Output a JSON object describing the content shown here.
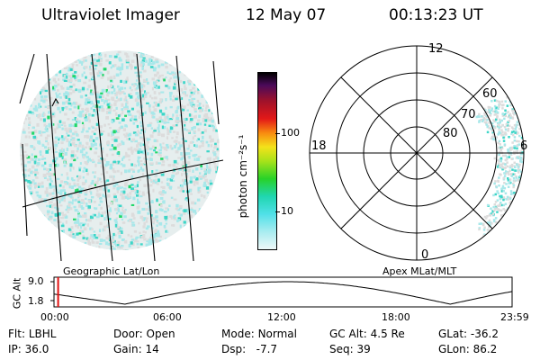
{
  "header": {
    "title": "Ultraviolet Imager",
    "date": "12 May 07",
    "time": "00:13:23 UT"
  },
  "left_panel": {
    "caption": "Geographic Lat/Lon"
  },
  "colorbar": {
    "unit_label": "photon cm⁻²s⁻¹",
    "ticks": [
      "100",
      "10"
    ]
  },
  "right_panel": {
    "caption": "Apex MLat/MLT",
    "mlt_labels": {
      "top": "12",
      "right": "6",
      "left": "18",
      "bottom": "0"
    },
    "lat_labels": [
      "60",
      "70",
      "80"
    ]
  },
  "timeline": {
    "ylabel": "GC Alt",
    "yticks": [
      "9.0",
      "1.8"
    ],
    "xticks": [
      "00:00",
      "06:00",
      "12:00",
      "18:00",
      "23:59"
    ],
    "current_fraction": 0.009
  },
  "footer": {
    "row1": [
      {
        "label": "Flt:",
        "value": "LBHL"
      },
      {
        "label": "Door:",
        "value": "Open"
      },
      {
        "label": "Mode:",
        "value": "Normal"
      },
      {
        "label": "GC Alt:",
        "value": "4.5 Re"
      },
      {
        "label": "GLat:",
        "value": "-36.2"
      }
    ],
    "row2": [
      {
        "label": "IP:",
        "value": "36.0"
      },
      {
        "label": "Gain:",
        "value": "14"
      },
      {
        "label": "Dsp:",
        "value": "  -7.7"
      },
      {
        "label": "Seq:",
        "value": "39"
      },
      {
        "label": "GLon:",
        "value": "86.2"
      }
    ]
  },
  "colors": {
    "speckle_low": "#dcdcdc",
    "speckle_mid": "#a8e8ea",
    "speckle_high": "#3ed6c8",
    "speckle_peak": "#22d86a"
  }
}
